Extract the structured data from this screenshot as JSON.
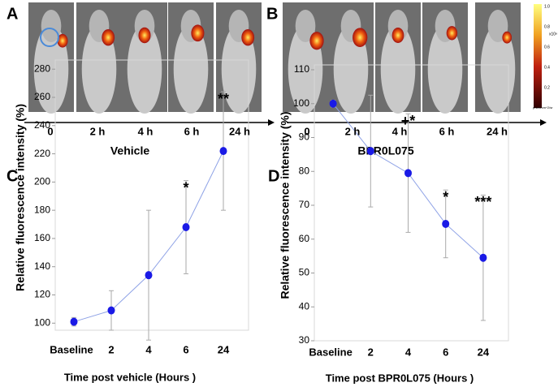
{
  "panels": {
    "a": "A",
    "b": "B",
    "c": "C",
    "d": "D",
    "timeline_a": {
      "labels": [
        "0",
        "2 h",
        "4 h",
        "6 h",
        "24 h"
      ],
      "title": "Vehicle"
    },
    "timeline_b": {
      "labels": [
        "0",
        "2 h",
        "4 h",
        "6 h",
        "24 h"
      ],
      "title": "BPR0L075"
    },
    "colorbar": {
      "ticks": [
        "1.0",
        "0.8",
        "0.6",
        "0.4",
        "0.2"
      ],
      "unit": "x10⁸",
      "label": "p/sec/cm^2/sr"
    }
  },
  "chart_data": [
    {
      "type": "line",
      "ylabel": "Relative fluorescence intensity (%)",
      "xlabel": "Time post vehicle (Hours )",
      "categories": [
        "Baseline",
        "2",
        "4",
        "6",
        "24"
      ],
      "values": [
        101,
        109,
        134,
        168,
        222
      ],
      "errors": [
        3,
        14,
        46,
        33,
        42
      ],
      "annotations": [
        null,
        null,
        null,
        "*",
        "**"
      ],
      "color": "#1a1ae6",
      "line_color": "#8ea2e6",
      "ylim": [
        95,
        283
      ],
      "yticks": [
        100,
        120,
        140,
        160,
        180,
        200,
        220,
        240,
        260,
        280
      ]
    },
    {
      "type": "line",
      "ylabel": "Relative fluorescence intensity (%)",
      "xlabel": "Time post BPR0L075 (Hours )",
      "categories": [
        "Baseline",
        "2",
        "4",
        "6",
        "24"
      ],
      "values": [
        100,
        86,
        79.5,
        64.5,
        54.5
      ],
      "errors": [
        1,
        16.5,
        17.5,
        10,
        18.5
      ],
      "annotations": [
        null,
        null,
        "+*",
        "*",
        "***"
      ],
      "color": "#1a1ae6",
      "line_color": "#8ea2e6",
      "ylim": [
        30,
        110
      ],
      "yticks": [
        30,
        40,
        50,
        60,
        70,
        80,
        90,
        100,
        110
      ]
    }
  ]
}
